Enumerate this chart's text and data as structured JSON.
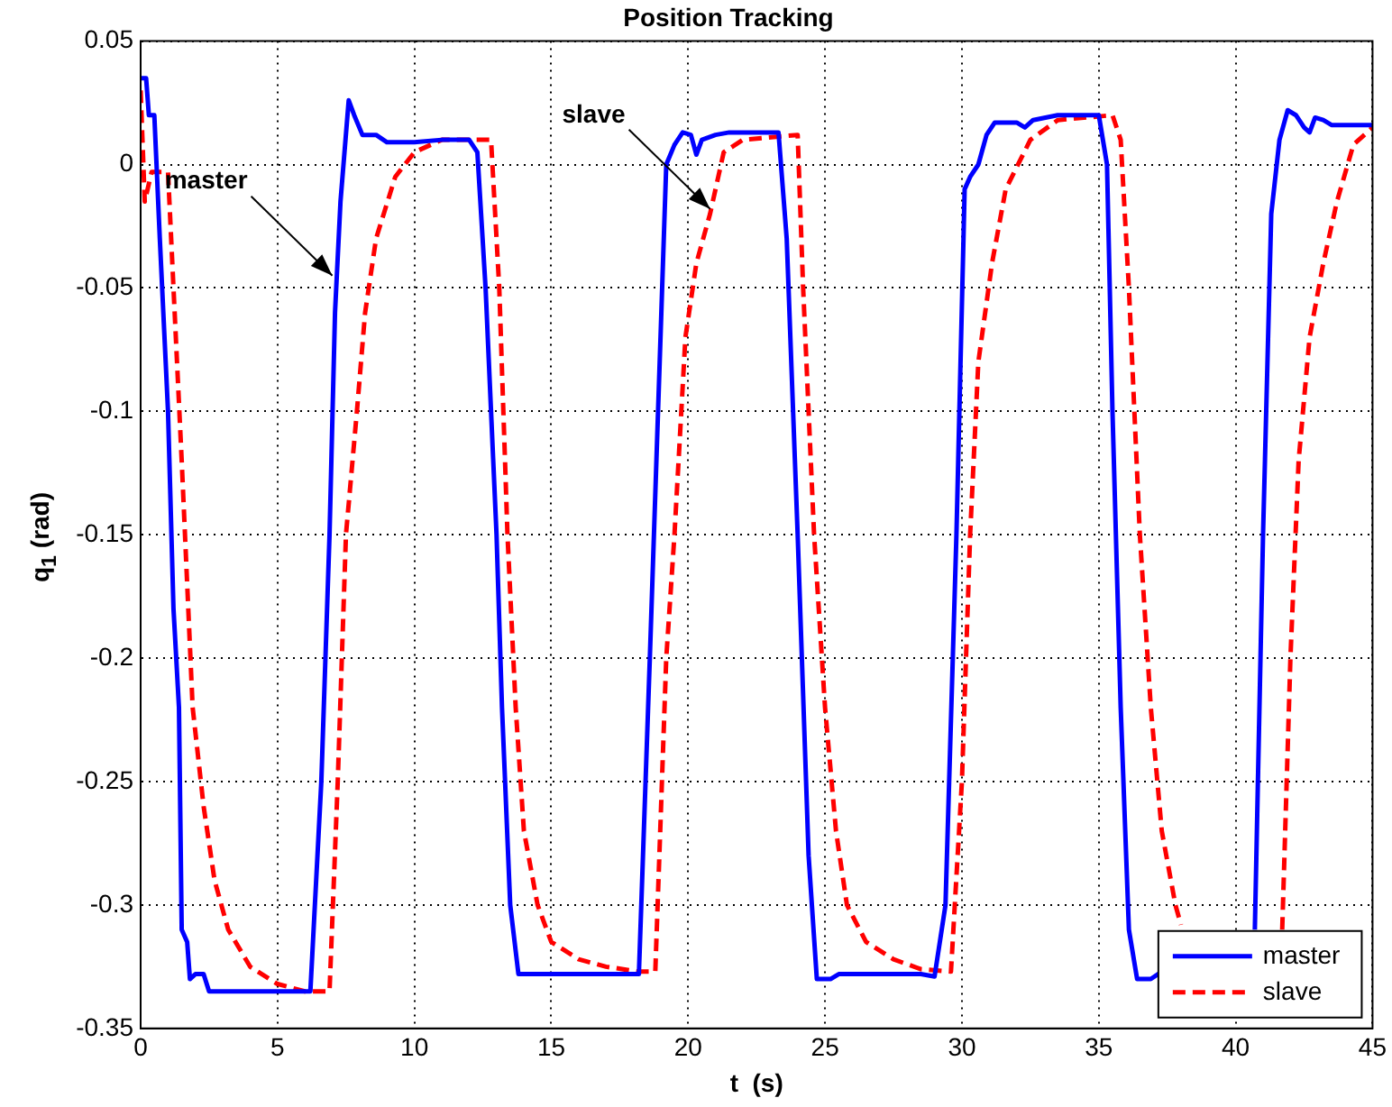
{
  "chart_data": {
    "type": "line",
    "title": "Position Tracking",
    "xlabel": "t  (s)",
    "ylabel": "q$_{1}$  (rad)",
    "xlim": [
      0,
      45
    ],
    "xticks": [
      0,
      5,
      10,
      15,
      20,
      25,
      30,
      35,
      40,
      45
    ],
    "ylim": [
      -0.35,
      0.05
    ],
    "yticks": [
      -0.35,
      -0.3,
      -0.25,
      -0.2,
      -0.15,
      -0.1,
      -0.05,
      0,
      0.05
    ],
    "grid": true,
    "legend": "bottom right",
    "marker": "none",
    "annotations": [
      {
        "text": "master",
        "x": 7.0,
        "y": -0.045
      },
      {
        "text": "slave",
        "x": 20.8,
        "y": -0.018
      }
    ],
    "series": [
      {
        "name": "master",
        "color": "#0000ff",
        "line_style": "solid",
        "x": [
          0,
          0.2,
          0.3,
          0.5,
          0.7,
          1.0,
          1.2,
          1.4,
          1.5,
          1.7,
          1.8,
          2.0,
          2.3,
          2.5,
          6.2,
          6.6,
          6.9,
          7.1,
          7.3,
          7.6,
          7.8,
          8.1,
          8.6,
          9,
          10,
          11,
          12,
          12.3,
          12.6,
          13,
          13.2,
          13.5,
          13.8,
          18.2,
          18.6,
          18.9,
          19.2,
          19.5,
          19.8,
          20.1,
          20.3,
          20.5,
          21,
          21.5,
          23.3,
          23.6,
          24,
          24.4,
          24.7,
          25.2,
          25.5,
          28.5,
          29.0,
          29.4,
          29.8,
          30.1,
          30.3,
          30.6,
          30.9,
          31.2,
          32,
          32.3,
          32.6,
          33.5,
          35,
          35.3,
          35.5,
          35.8,
          36.1,
          36.4,
          36.9,
          37.3,
          39,
          40.7,
          41,
          41.3,
          41.6,
          41.9,
          42.2,
          42.5,
          42.7,
          42.9,
          43.2,
          43.5,
          45
        ],
        "values": [
          0.035,
          0.035,
          0.02,
          0.02,
          -0.03,
          -0.1,
          -0.18,
          -0.22,
          -0.31,
          -0.315,
          -0.33,
          -0.328,
          -0.328,
          -0.335,
          -0.335,
          -0.25,
          -0.15,
          -0.06,
          -0.015,
          0.026,
          0.02,
          0.012,
          0.012,
          0.009,
          0.009,
          0.01,
          0.01,
          0.005,
          -0.05,
          -0.15,
          -0.22,
          -0.3,
          -0.328,
          -0.328,
          -0.2,
          -0.1,
          0,
          0.008,
          0.013,
          0.012,
          0.004,
          0.01,
          0.012,
          0.013,
          0.013,
          -0.03,
          -0.15,
          -0.28,
          -0.33,
          -0.33,
          -0.328,
          -0.328,
          -0.329,
          -0.3,
          -0.15,
          -0.01,
          -0.005,
          0,
          0.012,
          0.017,
          0.017,
          0.015,
          0.018,
          0.02,
          0.02,
          0,
          -0.1,
          -0.22,
          -0.31,
          -0.33,
          -0.33,
          -0.327,
          null,
          -0.31,
          -0.15,
          -0.02,
          0.01,
          0.022,
          0.02,
          0.015,
          0.013,
          0.019,
          0.018,
          0.016,
          0.016
        ]
      },
      {
        "name": "slave",
        "color": "#ff0000",
        "line_style": "dashed",
        "x": [
          0,
          0.15,
          0.4,
          1.0,
          1.2,
          1.5,
          1.7,
          1.9,
          2.3,
          2.7,
          3.2,
          4,
          5,
          6,
          6.9,
          7.2,
          7.5,
          7.9,
          8.2,
          8.6,
          9.3,
          10,
          11,
          12.8,
          13.1,
          13.4,
          13.7,
          14,
          14.5,
          15,
          16,
          17,
          18.2,
          18.8,
          19.2,
          19.5,
          19.9,
          20.3,
          20.8,
          21.3,
          22,
          24,
          24.2,
          24.6,
          25,
          25.4,
          25.8,
          26.5,
          27.5,
          28.5,
          29.6,
          30,
          30.3,
          30.6,
          31.1,
          31.6,
          32.5,
          33.5,
          35.5,
          35.8,
          36.1,
          36.5,
          36.9,
          37.3,
          37.8,
          38.0,
          39.5,
          41.7,
          42,
          42.3,
          42.7,
          43.2,
          43.7,
          44.3,
          45
        ],
        "values": [
          0.03,
          -0.015,
          -0.003,
          -0.003,
          -0.05,
          -0.12,
          -0.17,
          -0.22,
          -0.26,
          -0.29,
          -0.31,
          -0.325,
          -0.332,
          -0.335,
          -0.335,
          -0.25,
          -0.15,
          -0.1,
          -0.06,
          -0.03,
          -0.005,
          0.005,
          0.01,
          0.01,
          -0.05,
          -0.15,
          -0.22,
          -0.27,
          -0.3,
          -0.315,
          -0.322,
          -0.325,
          -0.327,
          -0.327,
          -0.2,
          -0.15,
          -0.07,
          -0.04,
          -0.02,
          0.005,
          0.01,
          0.012,
          -0.05,
          -0.15,
          -0.22,
          -0.27,
          -0.3,
          -0.315,
          -0.322,
          -0.326,
          -0.327,
          -0.25,
          -0.15,
          -0.08,
          -0.04,
          -0.01,
          0.01,
          0.018,
          0.02,
          0.01,
          -0.05,
          -0.15,
          -0.22,
          -0.27,
          -0.3,
          -0.308,
          null,
          -0.31,
          -0.2,
          -0.12,
          -0.07,
          -0.04,
          -0.015,
          0.008,
          0.015
        ]
      }
    ]
  }
}
